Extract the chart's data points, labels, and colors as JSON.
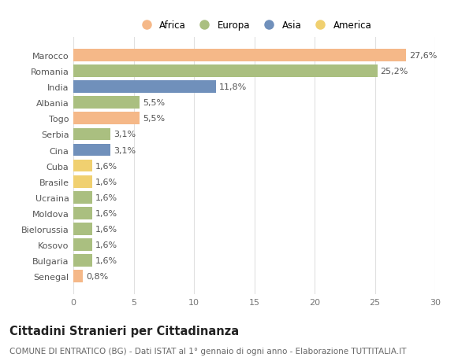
{
  "countries": [
    "Marocco",
    "Romania",
    "India",
    "Albania",
    "Togo",
    "Serbia",
    "Cina",
    "Cuba",
    "Brasile",
    "Ucraina",
    "Moldova",
    "Bielorussia",
    "Kosovo",
    "Bulgaria",
    "Senegal"
  ],
  "values": [
    27.6,
    25.2,
    11.8,
    5.5,
    5.5,
    3.1,
    3.1,
    1.6,
    1.6,
    1.6,
    1.6,
    1.6,
    1.6,
    1.6,
    0.8
  ],
  "labels": [
    "27,6%",
    "25,2%",
    "11,8%",
    "5,5%",
    "5,5%",
    "3,1%",
    "3,1%",
    "1,6%",
    "1,6%",
    "1,6%",
    "1,6%",
    "1,6%",
    "1,6%",
    "1,6%",
    "0,8%"
  ],
  "continents": [
    "Africa",
    "Europa",
    "Asia",
    "Europa",
    "Africa",
    "Europa",
    "Asia",
    "America",
    "America",
    "Europa",
    "Europa",
    "Europa",
    "Europa",
    "Europa",
    "Africa"
  ],
  "colors": {
    "Africa": "#F5B888",
    "Europa": "#AABF80",
    "Asia": "#7090BB",
    "America": "#F0D070"
  },
  "xlim": [
    0,
    30
  ],
  "xticks": [
    0,
    5,
    10,
    15,
    20,
    25,
    30
  ],
  "title": "Cittadini Stranieri per Cittadinanza",
  "subtitle": "COMUNE DI ENTRATICO (BG) - Dati ISTAT al 1° gennaio di ogni anno - Elaborazione TUTTITALIA.IT",
  "background_color": "#ffffff",
  "grid_color": "#e0e0e0",
  "bar_height": 0.78,
  "label_fontsize": 8.0,
  "tick_fontsize": 8.0,
  "title_fontsize": 10.5,
  "subtitle_fontsize": 7.5,
  "legend_labels": [
    "Africa",
    "Europa",
    "Asia",
    "America"
  ]
}
